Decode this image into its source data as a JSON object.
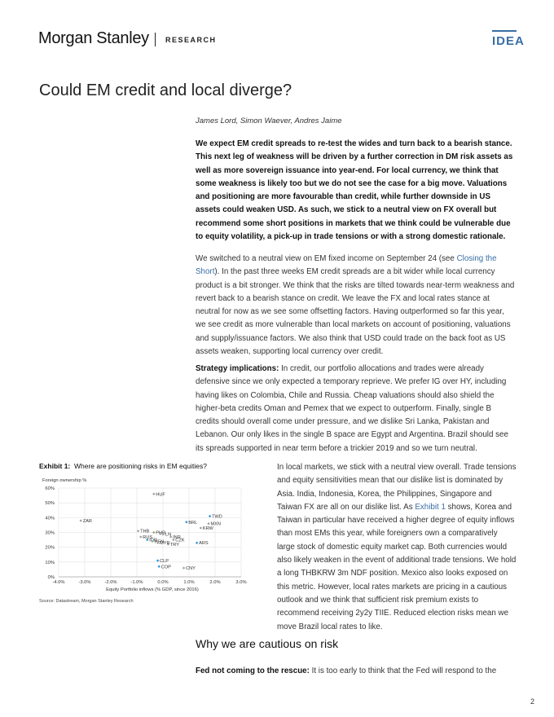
{
  "header": {
    "brand": "Morgan Stanley",
    "section": "RESEARCH",
    "tag": "IDEA"
  },
  "title": "Could EM credit and local diverge?",
  "authors": "James Lord, Simon Waever, Andres Jaime",
  "lead": "We expect EM credit spreads to re-test the wides and turn back to a bearish stance. This next leg of weakness will be driven by a further correction in DM risk assets as well as more sovereign issuance into year-end. For local currency, we think that some weakness is likely too but we do not see the case for a big move. Valuations and positioning are more favourable than credit, while further downside in US assets could weaken USD. As such, we stick to a neutral view on FX overall but recommend some short positions in markets that we think could be vulnerable due to equity volatility, a pick-up in trade tensions or with a strong domestic rationale.",
  "p2": {
    "pre": "We switched to a neutral view on EM fixed income on September 24 (see ",
    "link": "Closing the Short",
    "post": "). In the past three weeks EM credit spreads are a bit wider while local currency product is a bit stronger. We think that the risks are tilted towards near-term weakness and revert back to a bearish stance on credit. We leave the FX and local rates stance at neutral for now as we see some offsetting factors. Having outperformed so far this year, we see credit as more vulnerable than local markets on account of positioning, valuations and supply/issuance factors. We also think that USD could trade on the back foot as US assets weaken, supporting local currency over credit."
  },
  "p3": {
    "label": "Strategy implications:",
    "text": " In credit, our portfolio allocations and trades were already defensive since we only expected a temporary reprieve. We prefer IG over HY, including having likes on Colombia, Chile and Russia. Cheap valuations should also shield the higher-beta credits Oman and Pemex that we expect to outperform. Finally, single B credits should overall come under pressure, and we dislike Sri Lanka, Pakistan and Lebanon. Our only likes in the single B space are Egypt and Argentina. Brazil should see its spreads supported in near term before a trickier 2019 and so we turn neutral."
  },
  "p4": {
    "pre": "In local markets, we stick with a neutral view overall. Trade tensions and equity sensitivities mean that our dislike list is dominated by Asia. India, Indonesia, Korea, the Philippines, Singapore and Taiwan FX are all on our dislike list. As ",
    "link": "Exhibit 1",
    "post": " shows, Korea and Taiwan in particular have received a higher degree of equity inflows than most EMs this year, while foreigners own a comparatively large stock of domestic equity market cap. Both currencies would also likely weaken in the event of additional trade tensions. We hold a long THBKRW 3m NDF position. Mexico also looks exposed on this metric. However, local rates markets are pricing in a cautious outlook and we think that sufficient risk premium exists to recommend receiving 2y2y TIIE. Reduced election risks mean we move Brazil local rates to like."
  },
  "section_heading": "Why we are cautious on risk",
  "fed": {
    "label": "Fed not coming to the rescue:",
    "text": " It is too early to think that the Fed will respond to the"
  },
  "page_number": "2",
  "exhibit": {
    "label": "Exhibit 1:",
    "title": "Where are positioning risks in EM equities?",
    "source": "Source: Datastream, Morgan Stanley Research"
  },
  "colors": {
    "accent": "#3a6ea5",
    "point_blue": "#1f8fd6",
    "point_grey": "#999999",
    "point_olive": "#a0a05a",
    "point_green": "#7fb07f"
  },
  "chart_data": {
    "type": "scatter",
    "ylabel": "Foreign ownership %",
    "xlabel": "Equity Portfolio inflows (% GDP, since 2016)",
    "xlim": [
      -4,
      3
    ],
    "ylim": [
      0,
      60
    ],
    "x_ticks": [
      "-4.0%",
      "-3.0%",
      "-2.0%",
      "-1.0%",
      "0.0%",
      "1.0%",
      "2.0%",
      "3.0%"
    ],
    "y_ticks": [
      "0%",
      "10%",
      "20%",
      "30%",
      "40%",
      "50%",
      "60%"
    ],
    "grid": true,
    "points": [
      {
        "label": "HUF",
        "x": -0.35,
        "y": 56,
        "color": "grey"
      },
      {
        "label": "ZAR",
        "x": -3.15,
        "y": 38,
        "color": "grey"
      },
      {
        "label": "TWD",
        "x": 1.8,
        "y": 41,
        "color": "blue"
      },
      {
        "label": "BRL",
        "x": 0.9,
        "y": 37,
        "color": "blue"
      },
      {
        "label": "MXN",
        "x": 1.75,
        "y": 36,
        "color": "grey"
      },
      {
        "label": "KRW",
        "x": 1.45,
        "y": 33,
        "color": "grey"
      },
      {
        "label": "THB",
        "x": -0.95,
        "y": 31,
        "color": "grey"
      },
      {
        "label": "PHP",
        "x": -0.35,
        "y": 30,
        "color": "olive"
      },
      {
        "label": "PLN",
        "x": -0.1,
        "y": 29,
        "color": "grey"
      },
      {
        "label": "RUS",
        "x": -0.85,
        "y": 27,
        "color": "grey"
      },
      {
        "label": "INR",
        "x": 0.3,
        "y": 27,
        "color": "grey"
      },
      {
        "label": "CZK",
        "x": 0.4,
        "y": 25,
        "color": "grey"
      },
      {
        "label": "IDR",
        "x": -0.6,
        "y": 25,
        "color": "blue"
      },
      {
        "label": "PEN",
        "x": -0.4,
        "y": 24,
        "color": "green"
      },
      {
        "label": "MYR",
        "x": -0.2,
        "y": 23,
        "color": "grey"
      },
      {
        "label": "TRY",
        "x": 0.2,
        "y": 22,
        "color": "grey"
      },
      {
        "label": "ARS",
        "x": 1.3,
        "y": 23,
        "color": "blue"
      },
      {
        "label": "CLP",
        "x": -0.2,
        "y": 11,
        "color": "blue"
      },
      {
        "label": "COP",
        "x": -0.15,
        "y": 7,
        "color": "blue"
      },
      {
        "label": "CNY",
        "x": 0.8,
        "y": 6,
        "color": "green"
      }
    ]
  }
}
